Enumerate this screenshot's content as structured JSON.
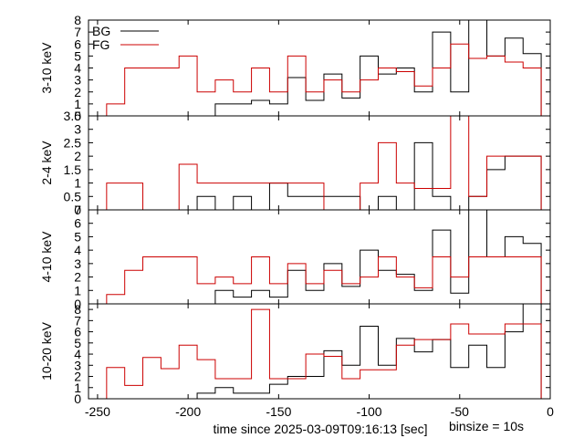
{
  "chart_data": {
    "type": "line",
    "style": "step histogram, 4 stacked panels sharing x-axis",
    "xlabel": "time since 2025-03-09T09:16:13 [sec]",
    "annotation": "binsize = 10s",
    "xlim": [
      -255,
      0
    ],
    "xticks": [
      -250,
      -200,
      -150,
      -100,
      -50,
      0
    ],
    "legend": {
      "placement": "top-left",
      "entries": [
        {
          "name": "BG",
          "color": "#000000"
        },
        {
          "name": "FG",
          "color": "#cc0000"
        }
      ]
    },
    "bin_edges": [
      -245,
      -235,
      -225,
      -215,
      -205,
      -195,
      -185,
      -175,
      -165,
      -155,
      -145,
      -135,
      -125,
      -115,
      -105,
      -95,
      -85,
      -75,
      -65,
      -55,
      -45,
      -35,
      -25,
      -15,
      -5
    ],
    "panels": [
      {
        "ylabel": "3-10 keV",
        "ylim": [
          0,
          8
        ],
        "yticks": [
          0,
          1,
          2,
          3,
          4,
          5,
          6,
          7,
          8
        ],
        "series": [
          {
            "name": "BG",
            "color": "#000000",
            "values": [
              0,
              0,
              0,
              0,
              0,
              0,
              1,
              1,
              1.3,
              1,
              3.2,
              1.3,
              3.5,
              1.5,
              5,
              3.5,
              4,
              2,
              7,
              2,
              8,
              5,
              6.5,
              5.2
            ]
          },
          {
            "name": "FG",
            "color": "#cc0000",
            "values": [
              1,
              4,
              4,
              4,
              5,
              2,
              3,
              2,
              4,
              2,
              5,
              2,
              3,
              2,
              3,
              4,
              3.7,
              2.5,
              4,
              6,
              4.8,
              5,
              4.5,
              4
            ]
          }
        ]
      },
      {
        "ylabel": "2-4 keV",
        "ylim": [
          0,
          3.5
        ],
        "yticks": [
          0,
          0.5,
          1,
          1.5,
          2,
          2.5,
          3,
          3.5
        ],
        "series": [
          {
            "name": "BG",
            "color": "#000000",
            "values": [
              0,
              0,
              0,
              0,
              0,
              0.5,
              0,
              0.5,
              0,
              1,
              0.5,
              0.5,
              0.5,
              0.5,
              0,
              0.5,
              0,
              2.5,
              0.5,
              0,
              0.5,
              1.5,
              2,
              2
            ]
          },
          {
            "name": "FG",
            "color": "#cc0000",
            "values": [
              1,
              1,
              0,
              0,
              1.7,
              1,
              1,
              1,
              1,
              1,
              1,
              1,
              0,
              0,
              1,
              2.5,
              1,
              0.8,
              0.8,
              3.9,
              0.5,
              2,
              2,
              2
            ]
          }
        ]
      },
      {
        "ylabel": "4-10 keV",
        "ylim": [
          0,
          7
        ],
        "yticks": [
          0,
          1,
          2,
          3,
          4,
          5,
          6,
          7
        ],
        "series": [
          {
            "name": "BG",
            "color": "#000000",
            "values": [
              0,
              0,
              0,
              0,
              0,
              0,
              1,
              0.5,
              1,
              0.5,
              2.5,
              1,
              3,
              1.3,
              4,
              2.5,
              2.2,
              1,
              5.5,
              0.8,
              7,
              3.5,
              5,
              4.5
            ]
          },
          {
            "name": "FG",
            "color": "#cc0000",
            "values": [
              0.7,
              2.5,
              3.5,
              3.5,
              3.5,
              1.5,
              2,
              1.5,
              3.5,
              1.5,
              3,
              1.5,
              2.5,
              1.5,
              2,
              3.5,
              2,
              1.2,
              3.5,
              2,
              3.5,
              3.5,
              3.5,
              3.5
            ]
          }
        ]
      },
      {
        "ylabel": "10-20 keV",
        "ylim": [
          0,
          8.5
        ],
        "yticks": [
          0,
          1,
          2,
          3,
          4,
          5,
          6,
          7,
          8
        ],
        "series": [
          {
            "name": "BG",
            "color": "#000000",
            "values": [
              0,
              0,
              0,
              0,
              0,
              0.5,
              1,
              0.5,
              0.5,
              1.3,
              2,
              2,
              4.3,
              3,
              6.5,
              3,
              5.4,
              4.2,
              5.3,
              2.8,
              4.8,
              2.8,
              6,
              8.6
            ]
          },
          {
            "name": "FG",
            "color": "#cc0000",
            "values": [
              2.8,
              1.2,
              3.7,
              2.7,
              4.8,
              3.5,
              1.8,
              1.8,
              8,
              1.8,
              1.8,
              4,
              3.8,
              1.8,
              2.6,
              2.6,
              4.8,
              5.3,
              5.3,
              6.7,
              5.8,
              5.8,
              6.7,
              6.7
            ]
          }
        ]
      }
    ]
  }
}
